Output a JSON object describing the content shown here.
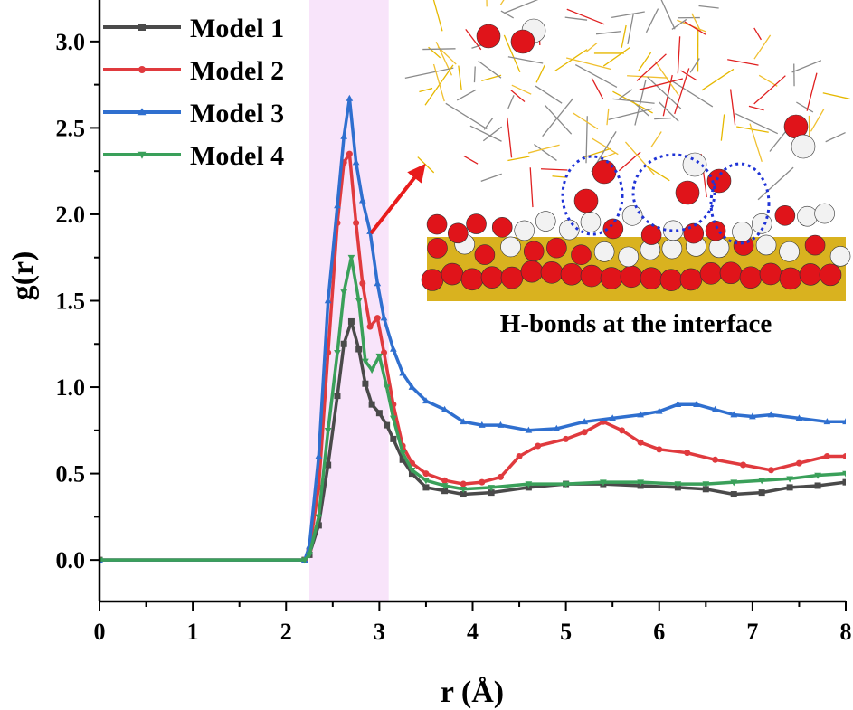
{
  "chart_data": {
    "type": "line",
    "title": "",
    "xlabel": "r (Å)",
    "ylabel": "g(r)",
    "xlim": [
      0,
      8
    ],
    "ylim": [
      -0.24,
      3.24
    ],
    "xticks": [
      "0",
      "1",
      "2",
      "3",
      "4",
      "5",
      "6",
      "7",
      "8"
    ],
    "yticks": [
      "0.0",
      "0.5",
      "1.0",
      "1.5",
      "2.0",
      "2.5",
      "3.0"
    ],
    "highlight_band": {
      "x_start": 2.25,
      "x_end": 3.1,
      "color": "#f8e4fa"
    },
    "legend_position": "top-left",
    "inset_caption": "H-bonds at the interface",
    "series": [
      {
        "name": "Model 1",
        "color": "#4a4a4a",
        "marker": "square",
        "points": [
          [
            0,
            0
          ],
          [
            2.2,
            0
          ],
          [
            2.25,
            0.03
          ],
          [
            2.35,
            0.2
          ],
          [
            2.45,
            0.55
          ],
          [
            2.55,
            0.95
          ],
          [
            2.62,
            1.25
          ],
          [
            2.7,
            1.38
          ],
          [
            2.78,
            1.22
          ],
          [
            2.85,
            1.02
          ],
          [
            2.92,
            0.9
          ],
          [
            3.0,
            0.85
          ],
          [
            3.08,
            0.78
          ],
          [
            3.15,
            0.7
          ],
          [
            3.25,
            0.58
          ],
          [
            3.35,
            0.5
          ],
          [
            3.5,
            0.42
          ],
          [
            3.7,
            0.4
          ],
          [
            3.9,
            0.38
          ],
          [
            4.2,
            0.39
          ],
          [
            4.6,
            0.42
          ],
          [
            5.0,
            0.44
          ],
          [
            5.4,
            0.44
          ],
          [
            5.8,
            0.43
          ],
          [
            6.2,
            0.42
          ],
          [
            6.5,
            0.41
          ],
          [
            6.8,
            0.38
          ],
          [
            7.1,
            0.39
          ],
          [
            7.4,
            0.42
          ],
          [
            7.7,
            0.43
          ],
          [
            8.0,
            0.45
          ]
        ]
      },
      {
        "name": "Model 2",
        "color": "#e03a3e",
        "marker": "circle",
        "points": [
          [
            0,
            0
          ],
          [
            2.2,
            0
          ],
          [
            2.25,
            0.06
          ],
          [
            2.35,
            0.42
          ],
          [
            2.45,
            1.2
          ],
          [
            2.55,
            1.95
          ],
          [
            2.62,
            2.3
          ],
          [
            2.68,
            2.35
          ],
          [
            2.75,
            1.95
          ],
          [
            2.82,
            1.6
          ],
          [
            2.9,
            1.35
          ],
          [
            2.98,
            1.4
          ],
          [
            3.05,
            1.2
          ],
          [
            3.15,
            0.9
          ],
          [
            3.25,
            0.66
          ],
          [
            3.35,
            0.56
          ],
          [
            3.5,
            0.5
          ],
          [
            3.7,
            0.46
          ],
          [
            3.9,
            0.44
          ],
          [
            4.1,
            0.45
          ],
          [
            4.3,
            0.48
          ],
          [
            4.5,
            0.6
          ],
          [
            4.7,
            0.66
          ],
          [
            5.0,
            0.7
          ],
          [
            5.2,
            0.74
          ],
          [
            5.4,
            0.8
          ],
          [
            5.6,
            0.75
          ],
          [
            5.8,
            0.68
          ],
          [
            6.0,
            0.64
          ],
          [
            6.3,
            0.62
          ],
          [
            6.6,
            0.58
          ],
          [
            6.9,
            0.55
          ],
          [
            7.2,
            0.52
          ],
          [
            7.5,
            0.56
          ],
          [
            7.8,
            0.6
          ],
          [
            8.0,
            0.6
          ]
        ]
      },
      {
        "name": "Model 3",
        "color": "#2f6fcf",
        "marker": "triangle-up",
        "points": [
          [
            0,
            0
          ],
          [
            2.2,
            0
          ],
          [
            2.25,
            0.08
          ],
          [
            2.35,
            0.6
          ],
          [
            2.45,
            1.5
          ],
          [
            2.55,
            2.05
          ],
          [
            2.62,
            2.45
          ],
          [
            2.68,
            2.67
          ],
          [
            2.75,
            2.3
          ],
          [
            2.82,
            2.08
          ],
          [
            2.9,
            1.9
          ],
          [
            2.98,
            1.6
          ],
          [
            3.05,
            1.4
          ],
          [
            3.15,
            1.22
          ],
          [
            3.25,
            1.08
          ],
          [
            3.35,
            1.0
          ],
          [
            3.5,
            0.92
          ],
          [
            3.7,
            0.87
          ],
          [
            3.9,
            0.8
          ],
          [
            4.1,
            0.78
          ],
          [
            4.3,
            0.78
          ],
          [
            4.6,
            0.75
          ],
          [
            4.9,
            0.76
          ],
          [
            5.2,
            0.8
          ],
          [
            5.5,
            0.82
          ],
          [
            5.8,
            0.84
          ],
          [
            6.0,
            0.86
          ],
          [
            6.2,
            0.9
          ],
          [
            6.4,
            0.9
          ],
          [
            6.6,
            0.87
          ],
          [
            6.8,
            0.84
          ],
          [
            7.0,
            0.83
          ],
          [
            7.2,
            0.84
          ],
          [
            7.5,
            0.82
          ],
          [
            7.8,
            0.8
          ],
          [
            8.0,
            0.8
          ]
        ]
      },
      {
        "name": "Model 4",
        "color": "#3aa05a",
        "marker": "triangle-down",
        "points": [
          [
            0,
            0
          ],
          [
            2.2,
            0
          ],
          [
            2.25,
            0.03
          ],
          [
            2.35,
            0.25
          ],
          [
            2.45,
            0.75
          ],
          [
            2.55,
            1.2
          ],
          [
            2.62,
            1.55
          ],
          [
            2.7,
            1.75
          ],
          [
            2.78,
            1.5
          ],
          [
            2.85,
            1.15
          ],
          [
            2.92,
            1.1
          ],
          [
            3.0,
            1.18
          ],
          [
            3.08,
            1.0
          ],
          [
            3.15,
            0.82
          ],
          [
            3.25,
            0.62
          ],
          [
            3.35,
            0.52
          ],
          [
            3.5,
            0.46
          ],
          [
            3.7,
            0.43
          ],
          [
            3.9,
            0.41
          ],
          [
            4.2,
            0.42
          ],
          [
            4.6,
            0.44
          ],
          [
            5.0,
            0.44
          ],
          [
            5.4,
            0.45
          ],
          [
            5.8,
            0.45
          ],
          [
            6.2,
            0.44
          ],
          [
            6.5,
            0.44
          ],
          [
            6.8,
            0.45
          ],
          [
            7.1,
            0.46
          ],
          [
            7.4,
            0.47
          ],
          [
            7.7,
            0.49
          ],
          [
            8.0,
            0.5
          ]
        ]
      }
    ]
  }
}
